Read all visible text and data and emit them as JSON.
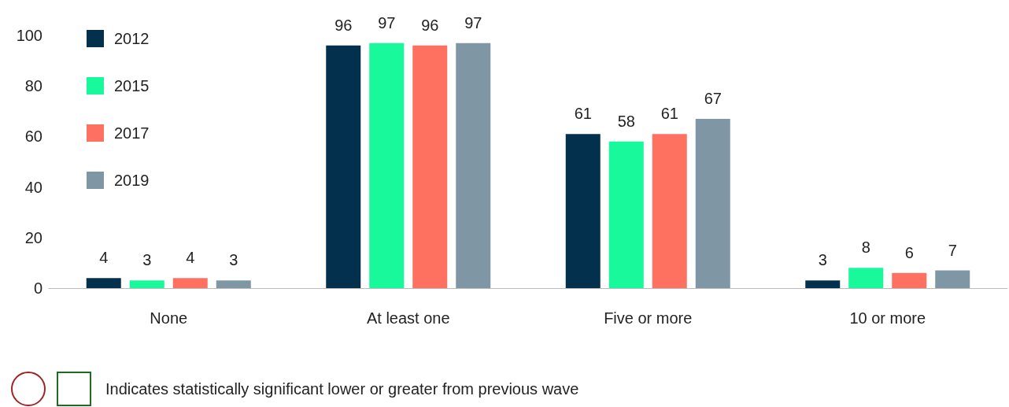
{
  "chart_data": {
    "type": "bar",
    "categories": [
      "None",
      "At least one",
      "Five or more",
      "10 or more"
    ],
    "series": [
      {
        "name": "2012",
        "color": "#03304d",
        "values": [
          4,
          96,
          61,
          3
        ]
      },
      {
        "name": "2015",
        "color": "#17f99b",
        "values": [
          3,
          97,
          58,
          8
        ]
      },
      {
        "name": "2017",
        "color": "#fe7060",
        "values": [
          4,
          96,
          61,
          6
        ]
      },
      {
        "name": "2019",
        "color": "#7f96a4",
        "values": [
          3,
          97,
          67,
          7
        ]
      }
    ],
    "ylim": [
      0,
      100
    ],
    "yticks": [
      0,
      20,
      40,
      60,
      80,
      100
    ],
    "grid": false,
    "legend": "top left",
    "data_labels": true,
    "annotations": [
      "Indicates statistically significant lower or greater from previous wave"
    ]
  }
}
